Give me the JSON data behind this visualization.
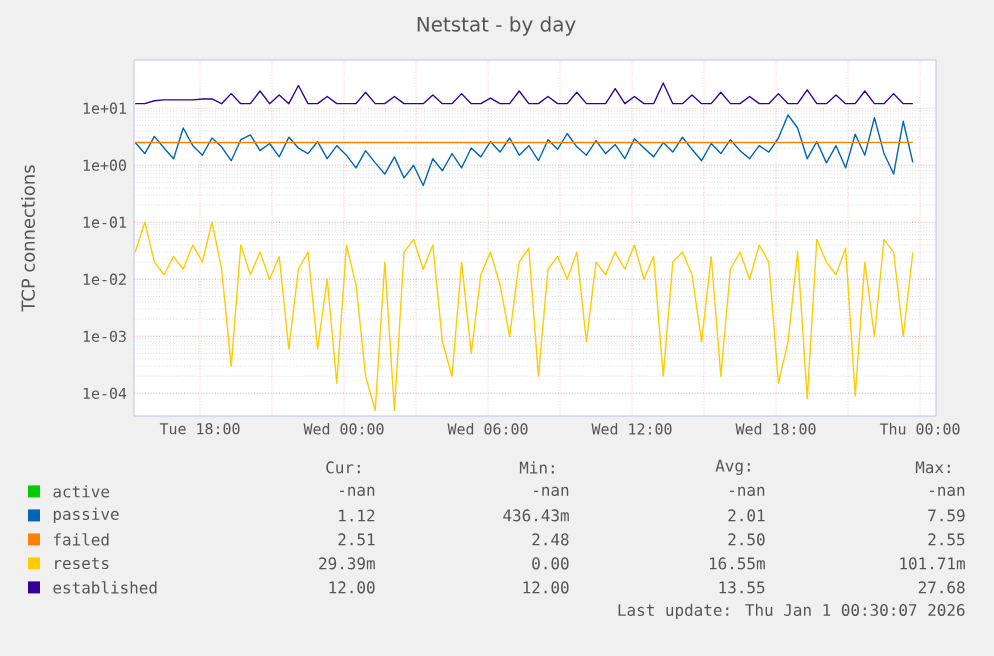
{
  "chart_data": {
    "type": "line",
    "title": "Netstat - by day",
    "ylabel": "TCP connections",
    "log": "y",
    "grid": true,
    "legend": "bottom",
    "xlim": [
      "2025-12-30T15:15",
      "2026-01-01T00:40"
    ],
    "ylim": [
      4e-05,
      70
    ],
    "xticks": [
      {
        "value": "2025-12-30T18:00",
        "label": "Tue 18:00"
      },
      {
        "value": "2025-12-30T21:00",
        "label": null
      },
      {
        "value": "2025-12-31T00:00",
        "label": "Wed 00:00"
      },
      {
        "value": "2025-12-31T03:00",
        "label": null
      },
      {
        "value": "2025-12-31T06:00",
        "label": "Wed 06:00"
      },
      {
        "value": "2025-12-31T09:00",
        "label": null
      },
      {
        "value": "2025-12-31T12:00",
        "label": "Wed 12:00"
      },
      {
        "value": "2025-12-31T15:00",
        "label": null
      },
      {
        "value": "2025-12-31T18:00",
        "label": "Wed 18:00"
      },
      {
        "value": "2025-12-31T21:00",
        "label": null
      },
      {
        "value": "2026-01-01T00:00",
        "label": "Thu 00:00"
      }
    ],
    "yticks": [
      {
        "value": 0.0001,
        "label": "1e-04"
      },
      {
        "value": 0.001,
        "label": "1e-03"
      },
      {
        "value": 0.01,
        "label": "1e-02"
      },
      {
        "value": 0.1,
        "label": "1e-01"
      },
      {
        "value": 1,
        "label": "1e+00"
      },
      {
        "value": 10,
        "label": "1e+01"
      }
    ],
    "x": [
      "2025-12-30T15:18",
      "2025-12-30T15:42",
      "2025-12-30T16:06",
      "2025-12-30T16:30",
      "2025-12-30T16:54",
      "2025-12-30T17:18",
      "2025-12-30T17:42",
      "2025-12-30T18:06",
      "2025-12-30T18:30",
      "2025-12-30T18:54",
      "2025-12-30T19:18",
      "2025-12-30T19:42",
      "2025-12-30T20:06",
      "2025-12-30T20:30",
      "2025-12-30T20:54",
      "2025-12-30T21:18",
      "2025-12-30T21:42",
      "2025-12-30T22:06",
      "2025-12-30T22:30",
      "2025-12-30T22:54",
      "2025-12-30T23:18",
      "2025-12-30T23:42",
      "2025-12-31T00:06",
      "2025-12-31T00:30",
      "2025-12-31T00:54",
      "2025-12-31T01:18",
      "2025-12-31T01:42",
      "2025-12-31T02:06",
      "2025-12-31T02:30",
      "2025-12-31T02:54",
      "2025-12-31T03:18",
      "2025-12-31T03:42",
      "2025-12-31T04:06",
      "2025-12-31T04:30",
      "2025-12-31T04:54",
      "2025-12-31T05:18",
      "2025-12-31T05:42",
      "2025-12-31T06:06",
      "2025-12-31T06:30",
      "2025-12-31T06:54",
      "2025-12-31T07:18",
      "2025-12-31T07:42",
      "2025-12-31T08:06",
      "2025-12-31T08:30",
      "2025-12-31T08:54",
      "2025-12-31T09:18",
      "2025-12-31T09:42",
      "2025-12-31T10:06",
      "2025-12-31T10:30",
      "2025-12-31T10:54",
      "2025-12-31T11:18",
      "2025-12-31T11:42",
      "2025-12-31T12:06",
      "2025-12-31T12:30",
      "2025-12-31T12:54",
      "2025-12-31T13:18",
      "2025-12-31T13:42",
      "2025-12-31T14:06",
      "2025-12-31T14:30",
      "2025-12-31T14:54",
      "2025-12-31T15:18",
      "2025-12-31T15:42",
      "2025-12-31T16:06",
      "2025-12-31T16:30",
      "2025-12-31T16:54",
      "2025-12-31T17:18",
      "2025-12-31T17:42",
      "2025-12-31T18:06",
      "2025-12-31T18:30",
      "2025-12-31T18:54",
      "2025-12-31T19:18",
      "2025-12-31T19:42",
      "2025-12-31T20:06",
      "2025-12-31T20:30",
      "2025-12-31T20:54",
      "2025-12-31T21:18",
      "2025-12-31T21:42",
      "2025-12-31T22:06",
      "2025-12-31T22:30",
      "2025-12-31T22:54",
      "2025-12-31T23:18",
      "2025-12-31T23:42"
    ],
    "series": [
      {
        "name": "active",
        "color": "#00cc00",
        "values": [
          null,
          null,
          null,
          null,
          null,
          null,
          null,
          null,
          null,
          null,
          null,
          null,
          null,
          null,
          null,
          null,
          null,
          null,
          null,
          null,
          null,
          null,
          null,
          null,
          null,
          null,
          null,
          null,
          null,
          null,
          null,
          null,
          null,
          null,
          null,
          null,
          null,
          null,
          null,
          null,
          null,
          null,
          null,
          null,
          null,
          null,
          null,
          null,
          null,
          null,
          null,
          null,
          null,
          null,
          null,
          null,
          null,
          null,
          null,
          null,
          null,
          null,
          null,
          null,
          null,
          null,
          null,
          null,
          null,
          null,
          null,
          null,
          null,
          null,
          null,
          null,
          null,
          null,
          null,
          null,
          null,
          null
        ]
      },
      {
        "name": "passive",
        "color": "#0066b3",
        "values": [
          2.5,
          1.6,
          3.2,
          2.0,
          1.3,
          4.5,
          2.2,
          1.5,
          3.0,
          2.1,
          1.2,
          2.8,
          3.4,
          1.8,
          2.4,
          1.4,
          3.1,
          2.0,
          1.6,
          2.6,
          1.3,
          2.2,
          1.5,
          0.9,
          1.8,
          1.1,
          0.7,
          1.4,
          0.6,
          1.0,
          0.44,
          1.3,
          0.8,
          1.6,
          0.9,
          2.0,
          1.4,
          2.6,
          1.7,
          3.0,
          1.5,
          2.2,
          1.2,
          2.8,
          1.9,
          3.6,
          2.1,
          1.5,
          2.7,
          1.6,
          2.3,
          1.3,
          2.9,
          2.0,
          1.4,
          2.5,
          1.7,
          3.1,
          1.9,
          1.2,
          2.4,
          1.6,
          2.8,
          1.8,
          1.3,
          2.2,
          1.7,
          3.0,
          7.59,
          4.5,
          1.3,
          2.6,
          1.1,
          2.2,
          0.9,
          3.5,
          1.5,
          6.8,
          1.6,
          0.7,
          5.9,
          1.12
        ]
      },
      {
        "name": "failed",
        "color": "#ff8000",
        "x": [
          "2025-12-30T15:18",
          "2025-12-31T23:42"
        ],
        "values": [
          2.5,
          2.51
        ]
      },
      {
        "name": "resets",
        "color": "#ffcc00",
        "values": [
          0.03,
          0.1,
          0.02,
          0.012,
          0.025,
          0.015,
          0.04,
          0.02,
          0.1017,
          0.015,
          0.0003,
          0.04,
          0.012,
          0.03,
          0.01,
          0.025,
          0.0006,
          0.015,
          0.03,
          0.0006,
          0.01,
          0.00015,
          0.04,
          0.008,
          0.0002,
          5e-05,
          0.02,
          5e-05,
          0.03,
          0.05,
          0.015,
          0.04,
          0.0008,
          0.0002,
          0.02,
          0.0005,
          0.012,
          0.03,
          0.008,
          0.001,
          0.02,
          0.035,
          0.0002,
          0.015,
          0.025,
          0.01,
          0.03,
          0.0008,
          0.02,
          0.012,
          0.03,
          0.015,
          0.04,
          0.01,
          0.025,
          0.0002,
          0.02,
          0.03,
          0.012,
          0.0008,
          0.025,
          0.0002,
          0.015,
          0.03,
          0.01,
          0.04,
          0.02,
          0.00015,
          0.0008,
          0.03,
          8e-05,
          0.05,
          0.02,
          0.012,
          0.035,
          9e-05,
          0.02,
          0.001,
          0.05,
          0.03,
          0.001,
          0.02939
        ]
      },
      {
        "name": "established",
        "color": "#330099",
        "values": [
          12,
          12,
          13.5,
          14,
          14,
          14,
          14,
          14.5,
          14.5,
          12,
          18,
          12,
          12,
          20,
          12,
          17,
          12,
          25,
          12,
          12,
          16,
          12,
          12,
          12,
          19,
          12,
          12,
          16,
          12,
          12,
          12,
          17,
          12,
          12,
          18,
          12,
          12,
          15,
          12,
          12,
          20,
          12,
          12,
          16,
          12,
          12,
          19,
          12,
          12,
          12,
          22,
          12,
          16,
          12,
          12,
          27.68,
          12,
          12,
          17,
          12,
          12,
          19,
          12,
          12,
          16,
          12,
          12,
          18,
          12,
          12,
          21,
          12,
          12,
          17,
          12,
          12,
          20,
          12,
          12,
          18,
          12,
          12
        ]
      }
    ],
    "annotations": [
      "Cur:",
      "Min:",
      "Avg:",
      "Max:",
      "-nan",
      "-nan",
      "-nan",
      "-nan",
      "1.12",
      "436.43m",
      "2.01",
      "7.59",
      "2.51",
      "2.48",
      "2.50",
      "2.55",
      "29.39m",
      "0.00",
      "16.55m",
      "101.71m",
      "12.00",
      "12.00",
      "13.55",
      "27.68",
      "Last update: Thu Jan  1 00:30:07 2026"
    ]
  }
}
